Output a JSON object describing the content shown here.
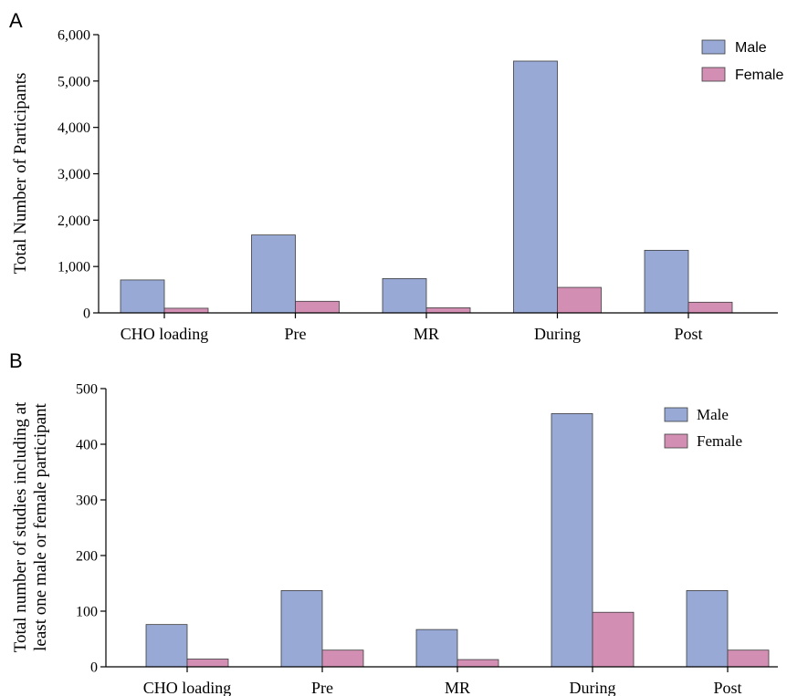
{
  "colors": {
    "male": "#97a9d4",
    "female": "#d38fb3"
  },
  "chart_data": [
    {
      "type": "bar",
      "panel": "A",
      "ylabel": "Total Number of Participants",
      "ylim": [
        0,
        6000
      ],
      "yticks": [
        "0",
        "1,000",
        "2,000",
        "3,000",
        "4,000",
        "5,000",
        "6,000"
      ],
      "ytick_values": [
        0,
        1000,
        2000,
        3000,
        4000,
        5000,
        6000
      ],
      "categories": [
        "CHO loading",
        "Pre",
        "MR",
        "During",
        "Post"
      ],
      "series": [
        {
          "name": "Male",
          "values": [
            710,
            1680,
            740,
            5430,
            1350
          ]
        },
        {
          "name": "Female",
          "values": [
            100,
            250,
            110,
            550,
            230
          ]
        }
      ],
      "legend_position": "top-right",
      "grid": false
    },
    {
      "type": "bar",
      "panel": "B",
      "ylabel": [
        "Total number of studies including at",
        "least one male or female participant"
      ],
      "ylim": [
        0,
        500
      ],
      "yticks": [
        "0",
        "100",
        "200",
        "300",
        "400",
        "500"
      ],
      "ytick_values": [
        0,
        100,
        200,
        300,
        400,
        500
      ],
      "categories": [
        "CHO loading",
        "Pre",
        "MR",
        "During",
        "Post"
      ],
      "series": [
        {
          "name": "Male",
          "values": [
            76,
            137,
            67,
            455,
            137
          ]
        },
        {
          "name": "Female",
          "values": [
            14,
            30,
            13,
            98,
            30
          ]
        }
      ],
      "legend_position": "top-right",
      "grid": false
    }
  ]
}
